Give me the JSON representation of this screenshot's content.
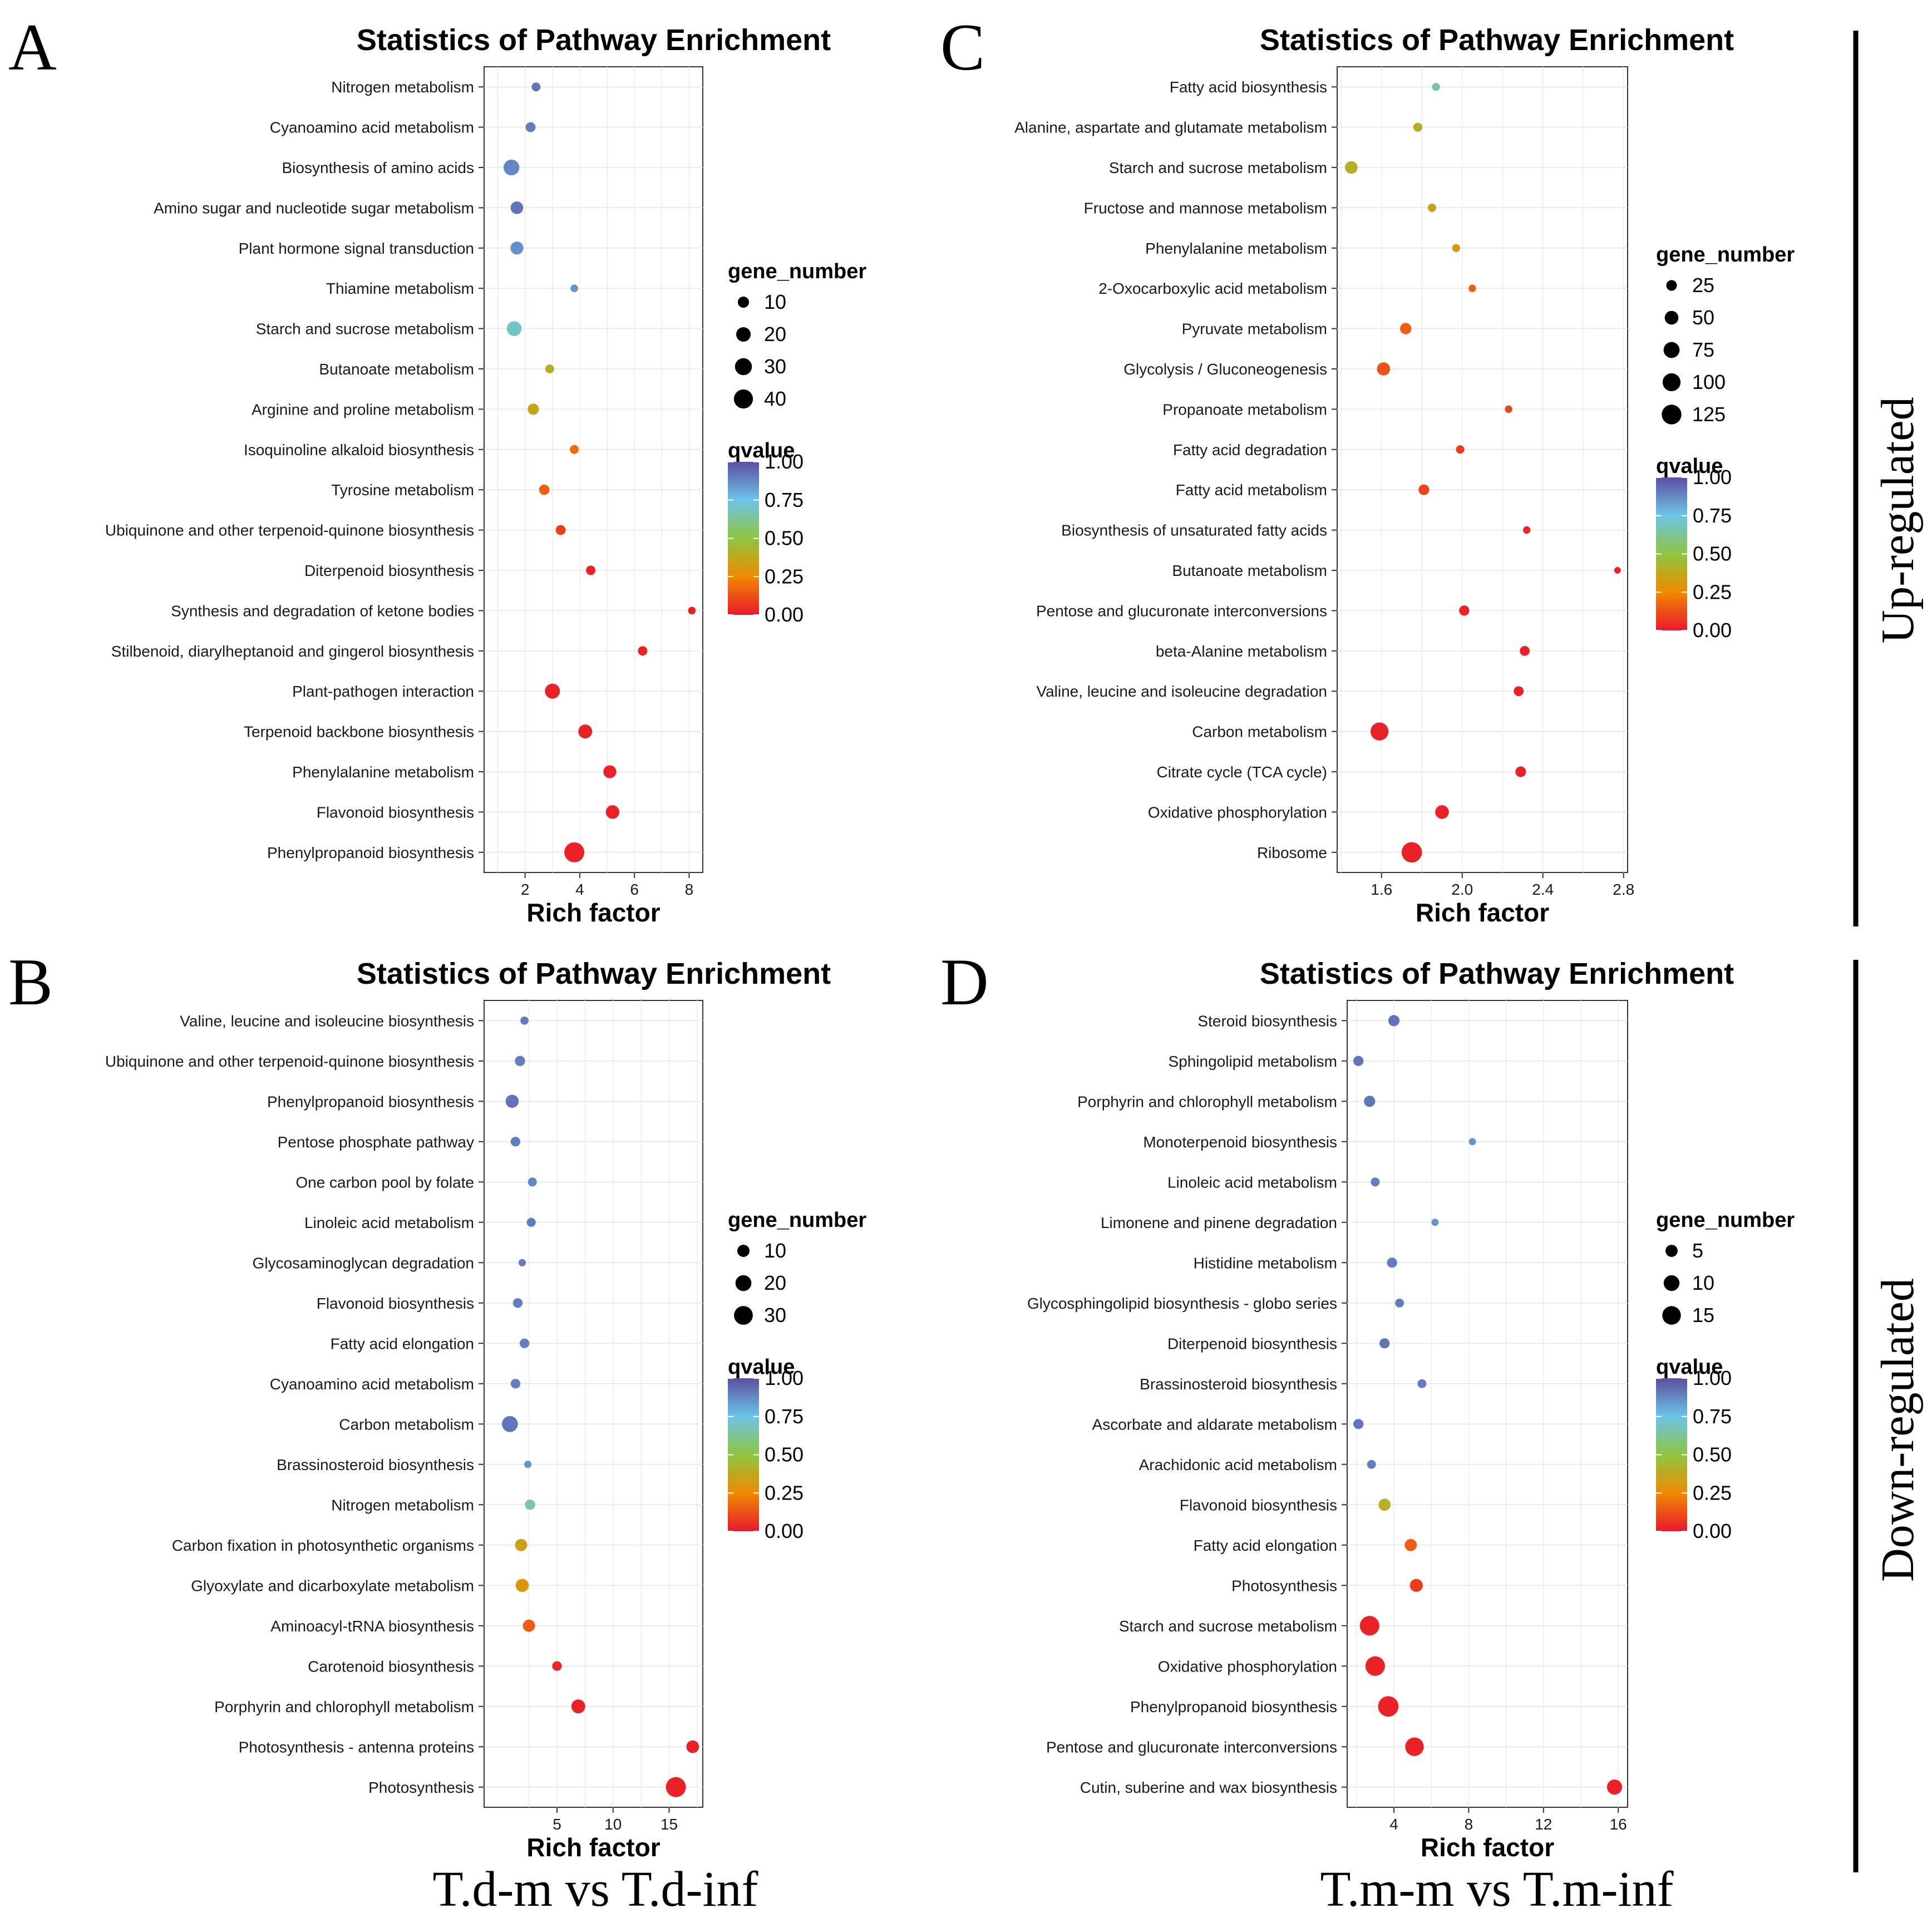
{
  "colors": {
    "q0": "#E8192C",
    "q25": "#F08A00",
    "q50": "#8DC63F",
    "q75": "#6EC4E8",
    "q100": "#5A4FA2"
  },
  "bottom_labels": [
    "T.d-m vs T.d-inf",
    "T.m-m vs T.m-inf"
  ],
  "side_labels": [
    "Up-regulated",
    "Down-regulated"
  ],
  "chart_data": [
    {
      "panel": "A",
      "type": "scatter",
      "title": "Statistics of Pathway Enrichment",
      "xlabel": "Rich factor",
      "xticks": [
        "2",
        "4",
        "6",
        "8"
      ],
      "xlim": [
        0.5,
        8.5
      ],
      "legend": {
        "size_title": "gene_number",
        "size_values": [
          "10",
          "20",
          "30",
          "40"
        ],
        "color_title": "qvalue",
        "color_ticks": [
          "1.00",
          "0.75",
          "0.50",
          "0.25",
          "0.00"
        ],
        "max_size": 45
      },
      "pathways": [
        "Nitrogen metabolism",
        "Cyanoamino acid metabolism",
        "Biosynthesis of amino acids",
        "Amino sugar and nucleotide sugar metabolism",
        "Plant hormone signal transduction",
        "Thiamine metabolism",
        "Starch and sucrose metabolism",
        "Butanoate metabolism",
        "Arginine and proline metabolism",
        "Isoquinoline alkaloid biosynthesis",
        "Tyrosine metabolism",
        "Ubiquinone and other terpenoid-quinone biosynthesis",
        "Diterpenoid biosynthesis",
        "Synthesis and degradation of ketone bodies",
        "Stilbenoid, diarylheptanoid and gingerol biosynthesis",
        "Plant-pathogen interaction",
        "Terpenoid backbone biosynthesis",
        "Phenylalanine metabolism",
        "Flavonoid biosynthesis",
        "Phenylpropanoid biosynthesis"
      ],
      "rich_factor": [
        2.4,
        2.2,
        1.5,
        1.7,
        1.7,
        3.8,
        1.6,
        2.9,
        2.3,
        3.8,
        2.7,
        3.3,
        4.4,
        8.1,
        6.3,
        3.0,
        4.2,
        5.1,
        5.2,
        3.8
      ],
      "gene_number": [
        5,
        7,
        25,
        14,
        15,
        3,
        21,
        5,
        10,
        5,
        8,
        7,
        6,
        3,
        6,
        22,
        18,
        15,
        17,
        45
      ],
      "qvalue": [
        0.92,
        0.9,
        0.88,
        0.92,
        0.86,
        0.85,
        0.7,
        0.4,
        0.36,
        0.18,
        0.15,
        0.08,
        0.02,
        0.02,
        0.02,
        0.02,
        0.02,
        0.02,
        0.02,
        0.02
      ]
    },
    {
      "panel": "C",
      "type": "scatter",
      "title": "Statistics of Pathway Enrichment",
      "xlabel": "Rich factor",
      "xticks": [
        "1.6",
        "2.0",
        "2.4",
        "2.8"
      ],
      "xlim": [
        1.38,
        2.82
      ],
      "legend": {
        "size_title": "gene_number",
        "size_values": [
          "25",
          "50",
          "75",
          "100",
          "125"
        ],
        "color_title": "qvalue",
        "color_ticks": [
          "1.00",
          "0.75",
          "0.50",
          "0.25",
          "0.00"
        ],
        "max_size": 130
      },
      "pathways": [
        "Fatty acid biosynthesis",
        "Alanine, aspartate and glutamate metabolism",
        "Starch and sucrose metabolism",
        "Fructose and mannose metabolism",
        "Phenylalanine metabolism",
        "2-Oxocarboxylic acid metabolism",
        "Pyruvate metabolism",
        "Glycolysis / Gluconeogenesis",
        "Propanoate metabolism",
        "Fatty acid degradation",
        "Fatty acid metabolism",
        "Biosynthesis of unsaturated fatty acids",
        "Butanoate metabolism",
        "Pentose and glucuronate interconversions",
        "beta-Alanine metabolism",
        "Valine, leucine and isoleucine degradation",
        "Carbon metabolism",
        "Citrate cycle (TCA cycle)",
        "Oxidative phosphorylation",
        "Ribosome"
      ],
      "rich_factor": [
        1.87,
        1.78,
        1.45,
        1.85,
        1.97,
        2.05,
        1.72,
        1.61,
        2.23,
        1.99,
        1.81,
        2.32,
        2.77,
        2.01,
        2.31,
        2.28,
        1.59,
        2.29,
        1.9,
        1.75
      ],
      "gene_number": [
        10,
        15,
        40,
        12,
        10,
        8,
        30,
        45,
        8,
        12,
        25,
        8,
        5,
        22,
        20,
        20,
        100,
        25,
        50,
        135
      ],
      "qvalue": [
        0.65,
        0.4,
        0.4,
        0.35,
        0.3,
        0.15,
        0.15,
        0.13,
        0.1,
        0.08,
        0.1,
        0.03,
        0.02,
        0.02,
        0.02,
        0.02,
        0.02,
        0.02,
        0.02,
        0.02
      ]
    },
    {
      "panel": "B",
      "type": "scatter",
      "title": "Statistics of Pathway Enrichment",
      "xlabel": "Rich factor",
      "xticks": [
        "5",
        "10",
        "15"
      ],
      "xlim": [
        -1.5,
        18.0
      ],
      "legend": {
        "size_title": "gene_number",
        "size_values": [
          "10",
          "20",
          "30"
        ],
        "color_title": "qvalue",
        "color_ticks": [
          "1.00",
          "0.75",
          "0.50",
          "0.25",
          "0.00"
        ],
        "max_size": 35
      },
      "pathways": [
        "Valine, leucine and isoleucine biosynthesis",
        "Ubiquinone and other terpenoid-quinone biosynthesis",
        "Phenylpropanoid biosynthesis",
        "Pentose phosphate pathway",
        "One carbon pool by folate",
        "Linoleic acid metabolism",
        "Glycosaminoglycan degradation",
        "Flavonoid biosynthesis",
        "Fatty acid elongation",
        "Cyanoamino acid metabolism",
        "Carbon metabolism",
        "Brassinosteroid biosynthesis",
        "Nitrogen metabolism",
        "Carbon fixation in photosynthetic organisms",
        "Glyoxylate and dicarboxylate metabolism",
        "Aminoacyl-tRNA biosynthesis",
        "Carotenoid biosynthesis",
        "Porphyrin and chlorophyll metabolism",
        "Photosynthesis - antenna proteins",
        "Photosynthesis"
      ],
      "rich_factor": [
        2.1,
        1.7,
        1.0,
        1.3,
        2.8,
        2.7,
        1.9,
        1.5,
        2.1,
        1.3,
        0.8,
        2.4,
        2.6,
        1.8,
        1.9,
        2.5,
        5.0,
        6.9,
        17.1,
        15.6
      ],
      "gene_number": [
        3,
        6,
        12,
        5,
        4,
        4,
        2,
        5,
        5,
        5,
        20,
        2,
        6,
        10,
        12,
        10,
        5,
        14,
        11,
        35
      ],
      "qvalue": [
        0.9,
        0.9,
        0.92,
        0.9,
        0.88,
        0.9,
        0.9,
        0.9,
        0.9,
        0.9,
        0.92,
        0.85,
        0.65,
        0.35,
        0.3,
        0.15,
        0.03,
        0.02,
        0.02,
        0.02
      ]
    },
    {
      "panel": "D",
      "type": "scatter",
      "title": "Statistics of Pathway Enrichment",
      "xlabel": "Rich factor",
      "xticks": [
        "4",
        "8",
        "12",
        "16"
      ],
      "xlim": [
        1.5,
        16.5
      ],
      "legend": {
        "size_title": "gene_number",
        "size_values": [
          "5",
          "10",
          "15"
        ],
        "color_title": "qvalue",
        "color_ticks": [
          "1.00",
          "0.75",
          "0.50",
          "0.25",
          "0.00"
        ],
        "max_size": 18
      },
      "pathways": [
        "Steroid biosynthesis",
        "Sphingolipid metabolism",
        "Porphyrin and chlorophyll metabolism",
        "Monoterpenoid biosynthesis",
        "Linoleic acid metabolism",
        "Limonene and pinene degradation",
        "Histidine metabolism",
        "Glycosphingolipid biosynthesis - globo series",
        "Diterpenoid biosynthesis",
        "Brassinosteroid biosynthesis",
        "Ascorbate and aldarate metabolism",
        "Arachidonic acid metabolism",
        "Flavonoid biosynthesis",
        "Fatty acid elongation",
        "Photosynthesis",
        "Starch and sucrose metabolism",
        "Oxidative phosphorylation",
        "Phenylpropanoid biosynthesis",
        "Pentose and glucuronate interconversions",
        "Cutin, suberine and wax biosynthesis"
      ],
      "rich_factor": [
        4.0,
        2.1,
        2.7,
        8.2,
        3.0,
        6.2,
        3.9,
        4.3,
        3.5,
        5.5,
        2.1,
        2.8,
        3.5,
        4.9,
        5.2,
        2.7,
        3.0,
        3.7,
        5.1,
        15.8
      ],
      "gene_number": [
        4,
        3,
        4,
        1,
        2,
        1,
        3,
        2,
        3,
        2,
        3,
        2,
        5,
        5,
        6,
        17,
        17,
        19,
        15,
        9
      ],
      "qvalue": [
        0.92,
        0.92,
        0.92,
        0.85,
        0.9,
        0.85,
        0.9,
        0.9,
        0.92,
        0.9,
        0.92,
        0.9,
        0.4,
        0.15,
        0.08,
        0.02,
        0.02,
        0.02,
        0.02,
        0.02
      ]
    }
  ]
}
